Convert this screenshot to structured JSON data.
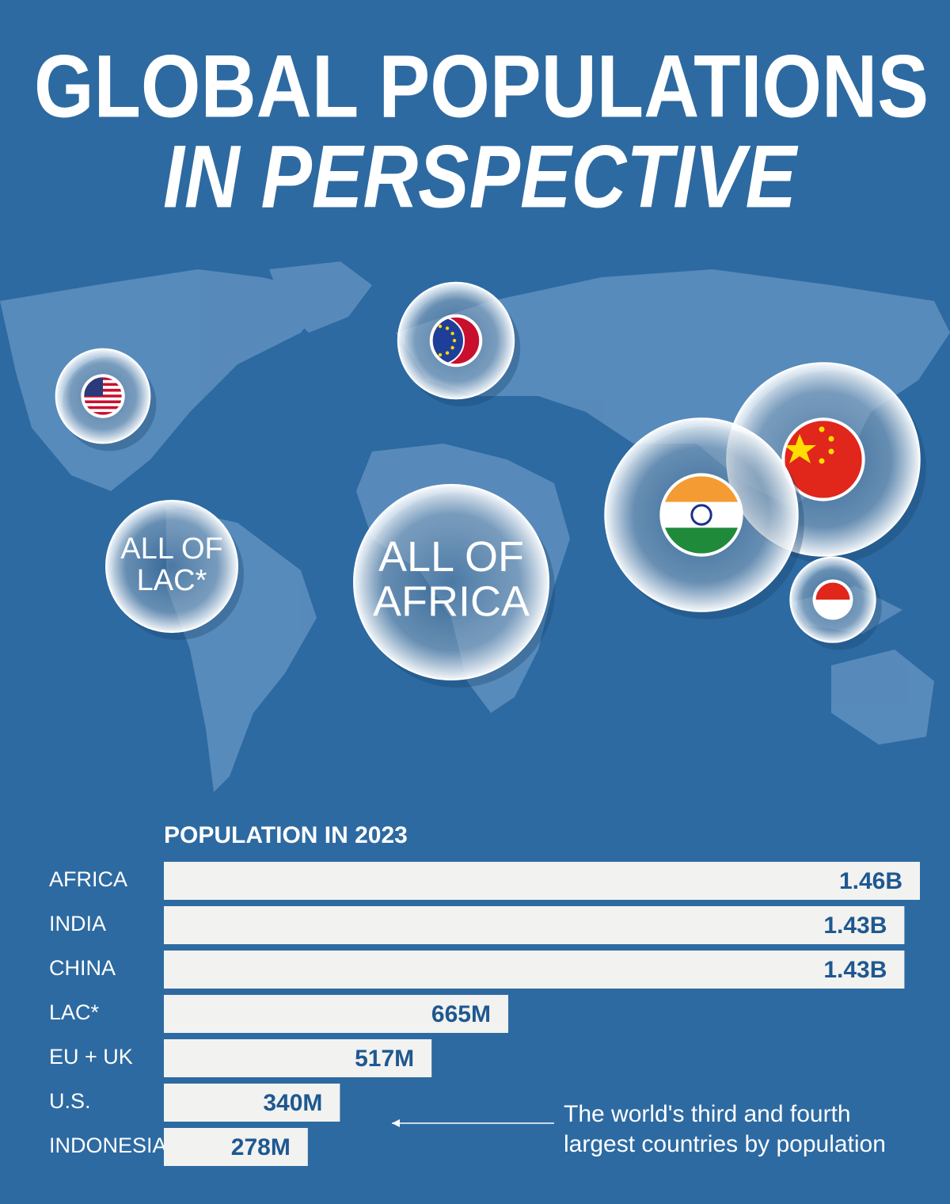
{
  "chart_data": {
    "type": "bar",
    "title": "GLOBAL POPULATIONS",
    "subtitle": "IN PERSPECTIVE",
    "axis_title": "POPULATION IN 2023",
    "categories": [
      "AFRICA",
      "INDIA",
      "CHINA",
      "LAC*",
      "EU + UK",
      "U.S.",
      "INDONESIA"
    ],
    "values": [
      1460,
      1430,
      1430,
      665,
      517,
      340,
      278
    ],
    "value_labels": [
      "1.46B",
      "1.43B",
      "1.43B",
      "665M",
      "517M",
      "340M",
      "278M"
    ],
    "color": "#f2f2f0",
    "africa_label": [
      "ALL OF",
      "AFRICA"
    ],
    "lac_label": [
      "ALL OF",
      "LAC*"
    ],
    "annotation": [
      "The world's third and fourth",
      "largest countries by population"
    ]
  }
}
